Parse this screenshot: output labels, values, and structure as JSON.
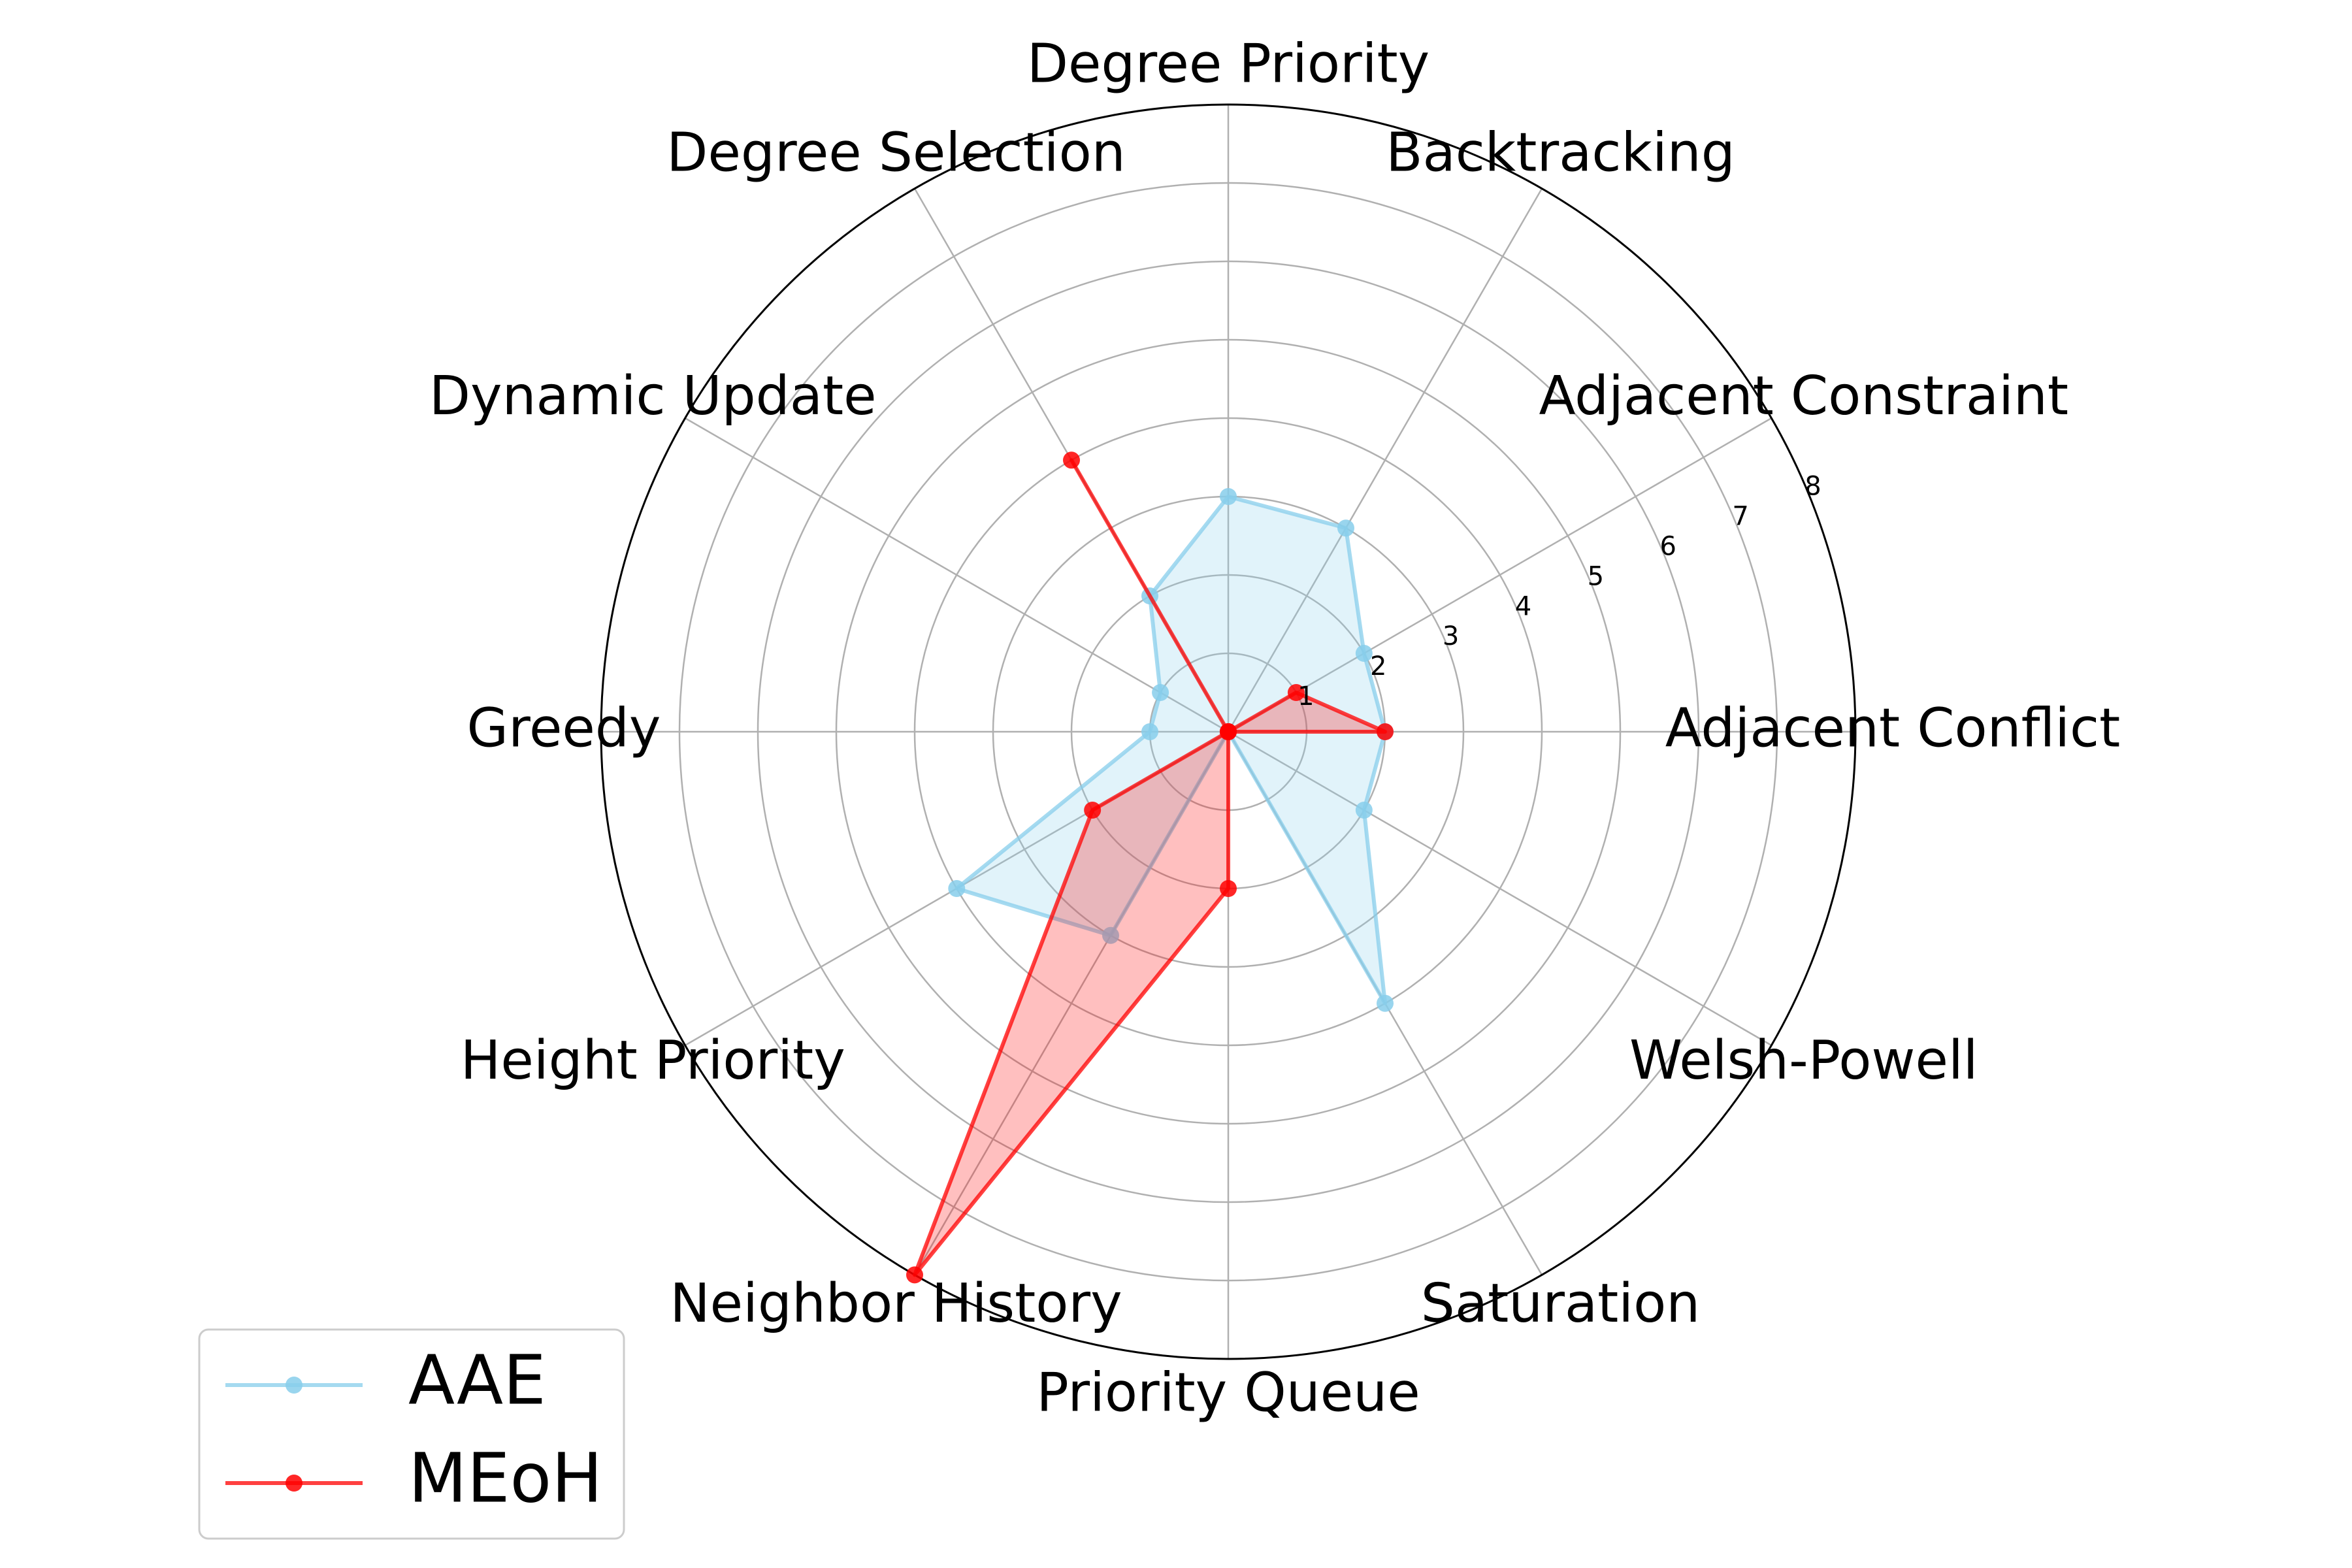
{
  "chart_data": {
    "type": "radar",
    "title": "",
    "categories": [
      "Adjacent Conflict",
      "Adjacent Constraint",
      "Backtracking",
      "Degree Priority",
      "Degree Selection",
      "Dynamic Update",
      "Greedy",
      "Height Priority",
      "Neighbor History",
      "Priority Queue",
      "Saturation",
      "Welsh-Powell"
    ],
    "radial_ticks": [
      "1",
      "2",
      "3",
      "4",
      "5",
      "6",
      "7",
      "8"
    ],
    "rlim": [
      0,
      8
    ],
    "grid": true,
    "legend_position": "lower-left",
    "series": [
      {
        "name": "AAE",
        "color": "#87CEEB",
        "values": [
          2,
          2,
          3,
          3,
          2,
          1,
          1,
          4,
          3,
          0,
          4,
          2
        ]
      },
      {
        "name": "MEoH",
        "color": "#FF0000",
        "values": [
          2,
          1,
          0,
          0,
          4,
          0,
          0,
          2,
          8,
          2,
          0,
          0
        ]
      }
    ]
  }
}
